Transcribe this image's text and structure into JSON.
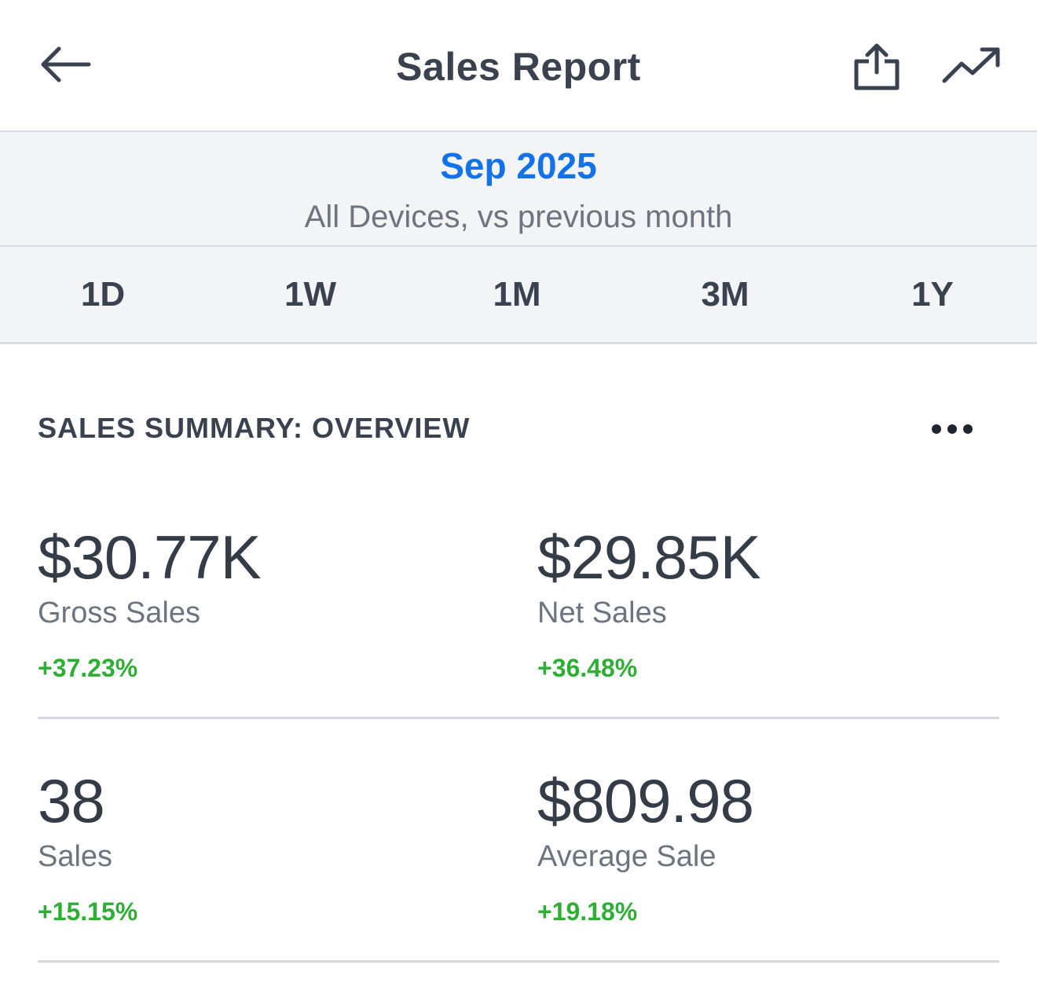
{
  "header": {
    "title": "Sales Report"
  },
  "date_band": {
    "period": "Sep 2025",
    "subtitle": "All Devices, vs previous month"
  },
  "range_tabs": [
    "1D",
    "1W",
    "1M",
    "3M",
    "1Y"
  ],
  "section": {
    "title": "SALES SUMMARY: OVERVIEW"
  },
  "metrics": [
    {
      "value": "$30.77K",
      "label": "Gross Sales",
      "change": "+37.23%"
    },
    {
      "value": "$29.85K",
      "label": "Net Sales",
      "change": "+36.48%"
    },
    {
      "value": "38",
      "label": "Sales",
      "change": "+15.15%"
    },
    {
      "value": "$809.98",
      "label": "Average Sale",
      "change": "+19.18%"
    }
  ],
  "colors": {
    "accent": "#1472e8",
    "positive": "#2fae36",
    "text": "#3a4250",
    "muted": "#6c7480",
    "band_bg": "#f3f4f6"
  }
}
